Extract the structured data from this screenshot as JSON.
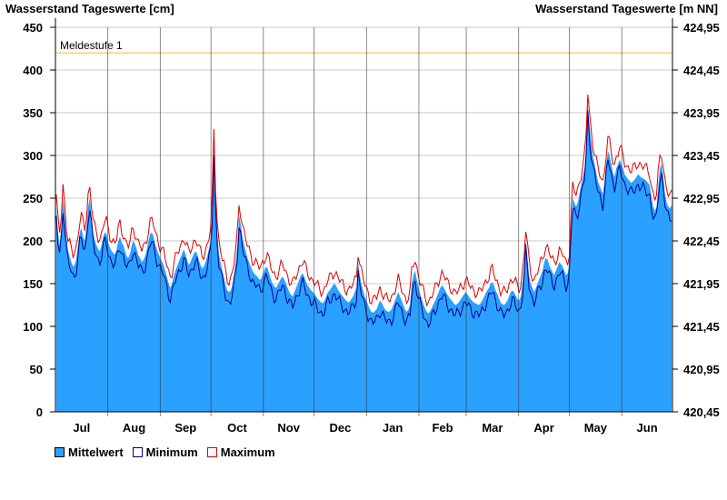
{
  "chart_data": {
    "type": "area",
    "title_left": "Wasserstand Tageswerte [cm]",
    "title_right": "Wasserstand Tageswerte [m NN]",
    "ylim": [
      0,
      450
    ],
    "y_ticks": [
      0,
      50,
      100,
      150,
      200,
      250,
      300,
      350,
      400,
      450
    ],
    "y2_ticks": [
      "420,45",
      "420,95",
      "421,45",
      "421,95",
      "422,45",
      "422,95",
      "423,45",
      "423,95",
      "424,45",
      "424,95"
    ],
    "months": [
      "Jul",
      "Aug",
      "Sep",
      "Oct",
      "Nov",
      "Dec",
      "Jan",
      "Feb",
      "Mar",
      "Apr",
      "May",
      "Jun"
    ],
    "days_in_months": [
      31,
      31,
      30,
      31,
      30,
      31,
      31,
      28,
      31,
      30,
      31,
      30
    ],
    "reference_line": {
      "label": "Meldestufe 1",
      "value": 420,
      "color": "#f5c040"
    },
    "grid": true,
    "legend_position": "bottom-left",
    "colors": {
      "mean": "#2aa0ff",
      "minimum": "#00008b",
      "maximum": "#dd0000",
      "axis": "#000000",
      "grid": "#c8c8c8"
    },
    "series": [
      {
        "name": "Mittelwert",
        "values": [
          240,
          210,
          195,
          215,
          250,
          230,
          205,
          188,
          182,
          175,
          170,
          172,
          180,
          195,
          210,
          215,
          205,
          200,
          215,
          240,
          250,
          230,
          210,
          200,
          195,
          190,
          188,
          195,
          205,
          210,
          208,
          198,
          192,
          188,
          186,
          184,
          190,
          200,
          205,
          198,
          195,
          188,
          182,
          180,
          185,
          195,
          200,
          196,
          190,
          183,
          180,
          175,
          178,
          182,
          190,
          200,
          208,
          210,
          205,
          196,
          190,
          185,
          180,
          176,
          172,
          165,
          158,
          150,
          145,
          150,
          158,
          165,
          170,
          175,
          180,
          185,
          190,
          185,
          178,
          172,
          175,
          180,
          185,
          188,
          185,
          178,
          172,
          168,
          170,
          175,
          182,
          190,
          200,
          235,
          315,
          250,
          210,
          185,
          175,
          165,
          158,
          148,
          142,
          140,
          142,
          148,
          160,
          175,
          195,
          230,
          220,
          205,
          196,
          188,
          180,
          175,
          170,
          165,
          162,
          160,
          158,
          155,
          155,
          160,
          165,
          170,
          168,
          162,
          155,
          150,
          147,
          145,
          148,
          152,
          156,
          158,
          155,
          150,
          145,
          140,
          137,
          135,
          140,
          145,
          150,
          155,
          160,
          162,
          158,
          152,
          148,
          145,
          142,
          140,
          138,
          135,
          132,
          130,
          128,
          127,
          130,
          135,
          140,
          142,
          145,
          148,
          150,
          147,
          143,
          140,
          137,
          135,
          132,
          130,
          128,
          129,
          132,
          135,
          140,
          145,
          175,
          160,
          150,
          142,
          135,
          130,
          125,
          120,
          117,
          116,
          118,
          120,
          125,
          130,
          128,
          124,
          120,
          118,
          117,
          118,
          120,
          125,
          130,
          135,
          140,
          135,
          130,
          125,
          120,
          117,
          120,
          125,
          150,
          160,
          165,
          155,
          145,
          138,
          132,
          126,
          121,
          117,
          115,
          118,
          122,
          126,
          130,
          135,
          140,
          145,
          148,
          146,
          142,
          138,
          135,
          132,
          130,
          127,
          125,
          126,
          128,
          131,
          134,
          137,
          140,
          138,
          135,
          132,
          130,
          128,
          127,
          126,
          125,
          127,
          130,
          134,
          138,
          142,
          145,
          150,
          152,
          148,
          142,
          138,
          133,
          128,
          126,
          125,
          127,
          130,
          135,
          140,
          142,
          140,
          136,
          132,
          130,
          135,
          150,
          170,
          200,
          180,
          160,
          150,
          145,
          140,
          145,
          150,
          155,
          160,
          165,
          175,
          180,
          178,
          172,
          167,
          163,
          160,
          165,
          170,
          175,
          173,
          170,
          165,
          160,
          162,
          175,
          220,
          250,
          245,
          240,
          245,
          255,
          265,
          275,
          285,
          310,
          360,
          335,
          315,
          300,
          290,
          280,
          270,
          265,
          260,
          255,
          270,
          290,
          305,
          300,
          290,
          280,
          275,
          285,
          290,
          295,
          290,
          285,
          278,
          275,
          272,
          270,
          268,
          270,
          272,
          275,
          278,
          276,
          274,
          273,
          272,
          270,
          268,
          265,
          250,
          240,
          235,
          240,
          265,
          285,
          290,
          275,
          255,
          245,
          240,
          238,
          242
        ],
        "color": "#2aa0ff"
      },
      {
        "name": "Minimum",
        "color": "#00008b",
        "offset": -12
      },
      {
        "name": "Maximum",
        "color": "#dd0000",
        "offset": 14
      }
    ]
  },
  "legend": [
    {
      "label": "Mittelwert",
      "fill": "#2aa0ff",
      "border": "#000000"
    },
    {
      "label": "Minimum",
      "fill": "#ffffff",
      "border": "#00008b"
    },
    {
      "label": "Maximum",
      "fill": "#ffffff",
      "border": "#dd0000"
    }
  ]
}
